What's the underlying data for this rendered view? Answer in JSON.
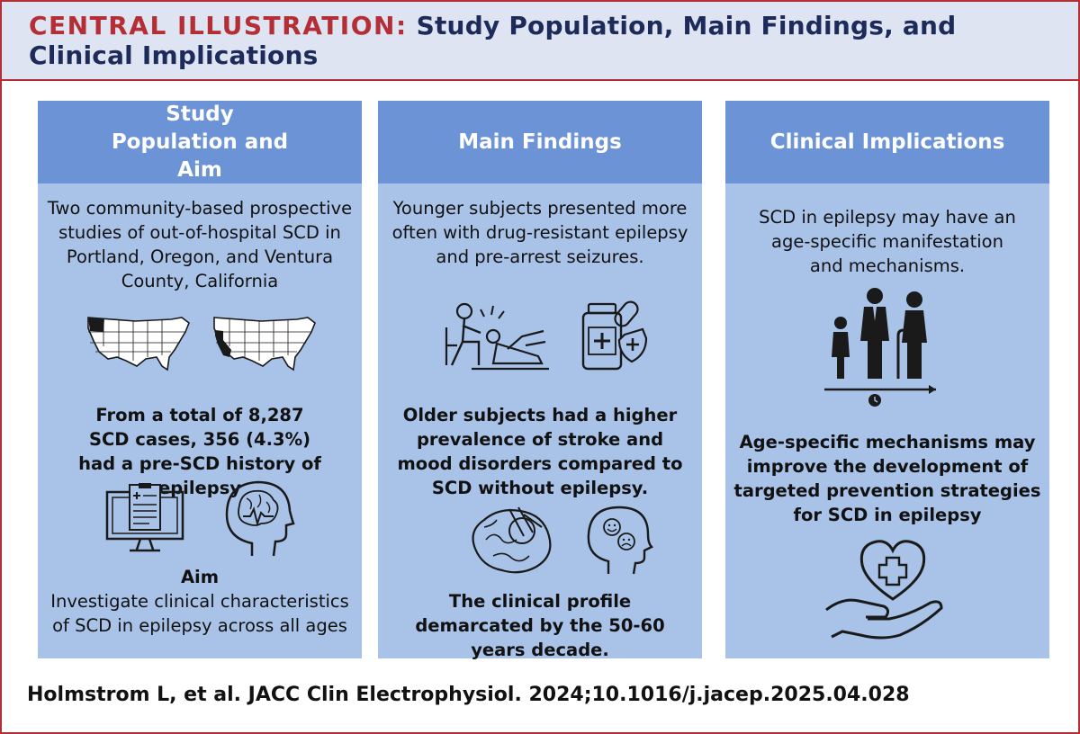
{
  "header": {
    "label": "CENTRAL ILLUSTRATION:",
    "title": "Study Population, Main Findings, and Clinical Implications"
  },
  "panels": [
    {
      "heading": "Study Population and Aim",
      "text1": "Two community-based prospective studies of out-of-hospital SCD in Portland, Oregon, and Ventura County, California",
      "text2": "From a total of 8,287 SCD cases, 356 (4.3%) had a pre-SCD history of epilepsy",
      "aim_label": "Aim",
      "aim_text": "Investigate clinical characteristics of SCD in epilepsy across all ages"
    },
    {
      "heading": "Main Findings",
      "text1": "Younger subjects presented more often with drug-resistant epilepsy and pre-arrest seizures.",
      "text2": "Older subjects had a higher prevalence of stroke and mood disorders compared to SCD without epilepsy.",
      "text3": "The clinical profile demarcated by the 50-60 years decade."
    },
    {
      "heading": "Clinical Implications",
      "text1": "SCD in epilepsy may have an age-specific manifestation and mechanisms.",
      "text2": "Age-specific mechanisms may improve the development of targeted prevention strategies for SCD in epilepsy"
    }
  ],
  "footer": {
    "citation": "Holmstrom L, et al. JACC Clin Electrophysiol. 2024;10.1016/j.jacep.2025.04.028"
  },
  "colors": {
    "accent_red": "#b42e35",
    "navy": "#1c2b5a",
    "panel_header": "#6b93d6",
    "panel_body": "#a9c2e8"
  }
}
